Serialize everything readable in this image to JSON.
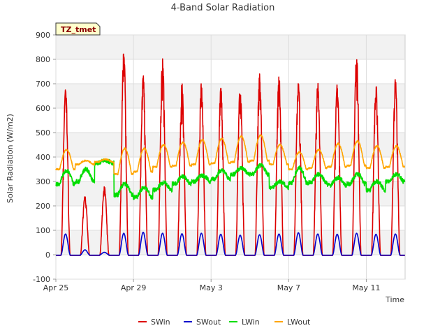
{
  "chart_data": {
    "type": "line",
    "title": "4-Band Solar Radiation",
    "xlabel": "Time",
    "ylabel": "Solar Radiation (W/m2)",
    "badge": "TZ_tmet",
    "x_start": "2024-04-25",
    "x_end": "2024-05-13",
    "xlim": [
      "2024-04-25",
      "2024-05-13"
    ],
    "ylim": [
      -100,
      900
    ],
    "y_ticks": [
      -100,
      0,
      100,
      200,
      300,
      400,
      500,
      600,
      700,
      800,
      900
    ],
    "x_ticks": [
      {
        "date": "2024-04-25",
        "label": "Apr 25"
      },
      {
        "date": "2024-04-29",
        "label": "Apr 29"
      },
      {
        "date": "2024-05-03",
        "label": "May 3"
      },
      {
        "date": "2024-05-07",
        "label": "May 7"
      },
      {
        "date": "2024-05-11",
        "label": "May 11"
      }
    ],
    "grid": true,
    "legend_position": "bottom",
    "days": [
      "2024-04-25",
      "2024-04-26",
      "2024-04-27",
      "2024-04-28",
      "2024-04-29",
      "2024-04-30",
      "2024-05-01",
      "2024-05-02",
      "2024-05-03",
      "2024-05-04",
      "2024-05-05",
      "2024-05-06",
      "2024-05-07",
      "2024-05-08",
      "2024-05-09",
      "2024-05-10",
      "2024-05-11",
      "2024-05-12"
    ],
    "series": [
      {
        "name": "SWin",
        "color": "#dd0000",
        "daily_peak": [
          690,
          240,
          280,
          840,
          735,
          810,
          705,
          710,
          695,
          690,
          750,
          740,
          710,
          705,
          710,
          830,
          700,
          720
        ],
        "night": -3
      },
      {
        "name": "SWout",
        "color": "#0000cc",
        "daily_peak": [
          85,
          20,
          10,
          88,
          92,
          88,
          86,
          88,
          84,
          80,
          82,
          85,
          90,
          85,
          84,
          88,
          84,
          85
        ],
        "night": -2
      },
      {
        "name": "LWin",
        "color": "#00dd00",
        "daily_peak": [
          345,
          350,
          385,
          290,
          275,
          295,
          320,
          325,
          345,
          355,
          365,
          300,
          355,
          330,
          315,
          330,
          300,
          330
        ],
        "night": [
          290,
          300,
          375,
          245,
          235,
          265,
          290,
          300,
          310,
          330,
          330,
          275,
          295,
          295,
          285,
          290,
          265,
          300
        ]
      },
      {
        "name": "LWout",
        "color": "#ffa500",
        "daily_peak": [
          430,
          385,
          390,
          435,
          435,
          450,
          460,
          470,
          475,
          485,
          490,
          450,
          420,
          430,
          455,
          465,
          445,
          445
        ],
        "night": [
          350,
          370,
          380,
          330,
          340,
          360,
          365,
          370,
          375,
          380,
          385,
          370,
          350,
          355,
          360,
          365,
          355,
          360
        ]
      }
    ]
  }
}
